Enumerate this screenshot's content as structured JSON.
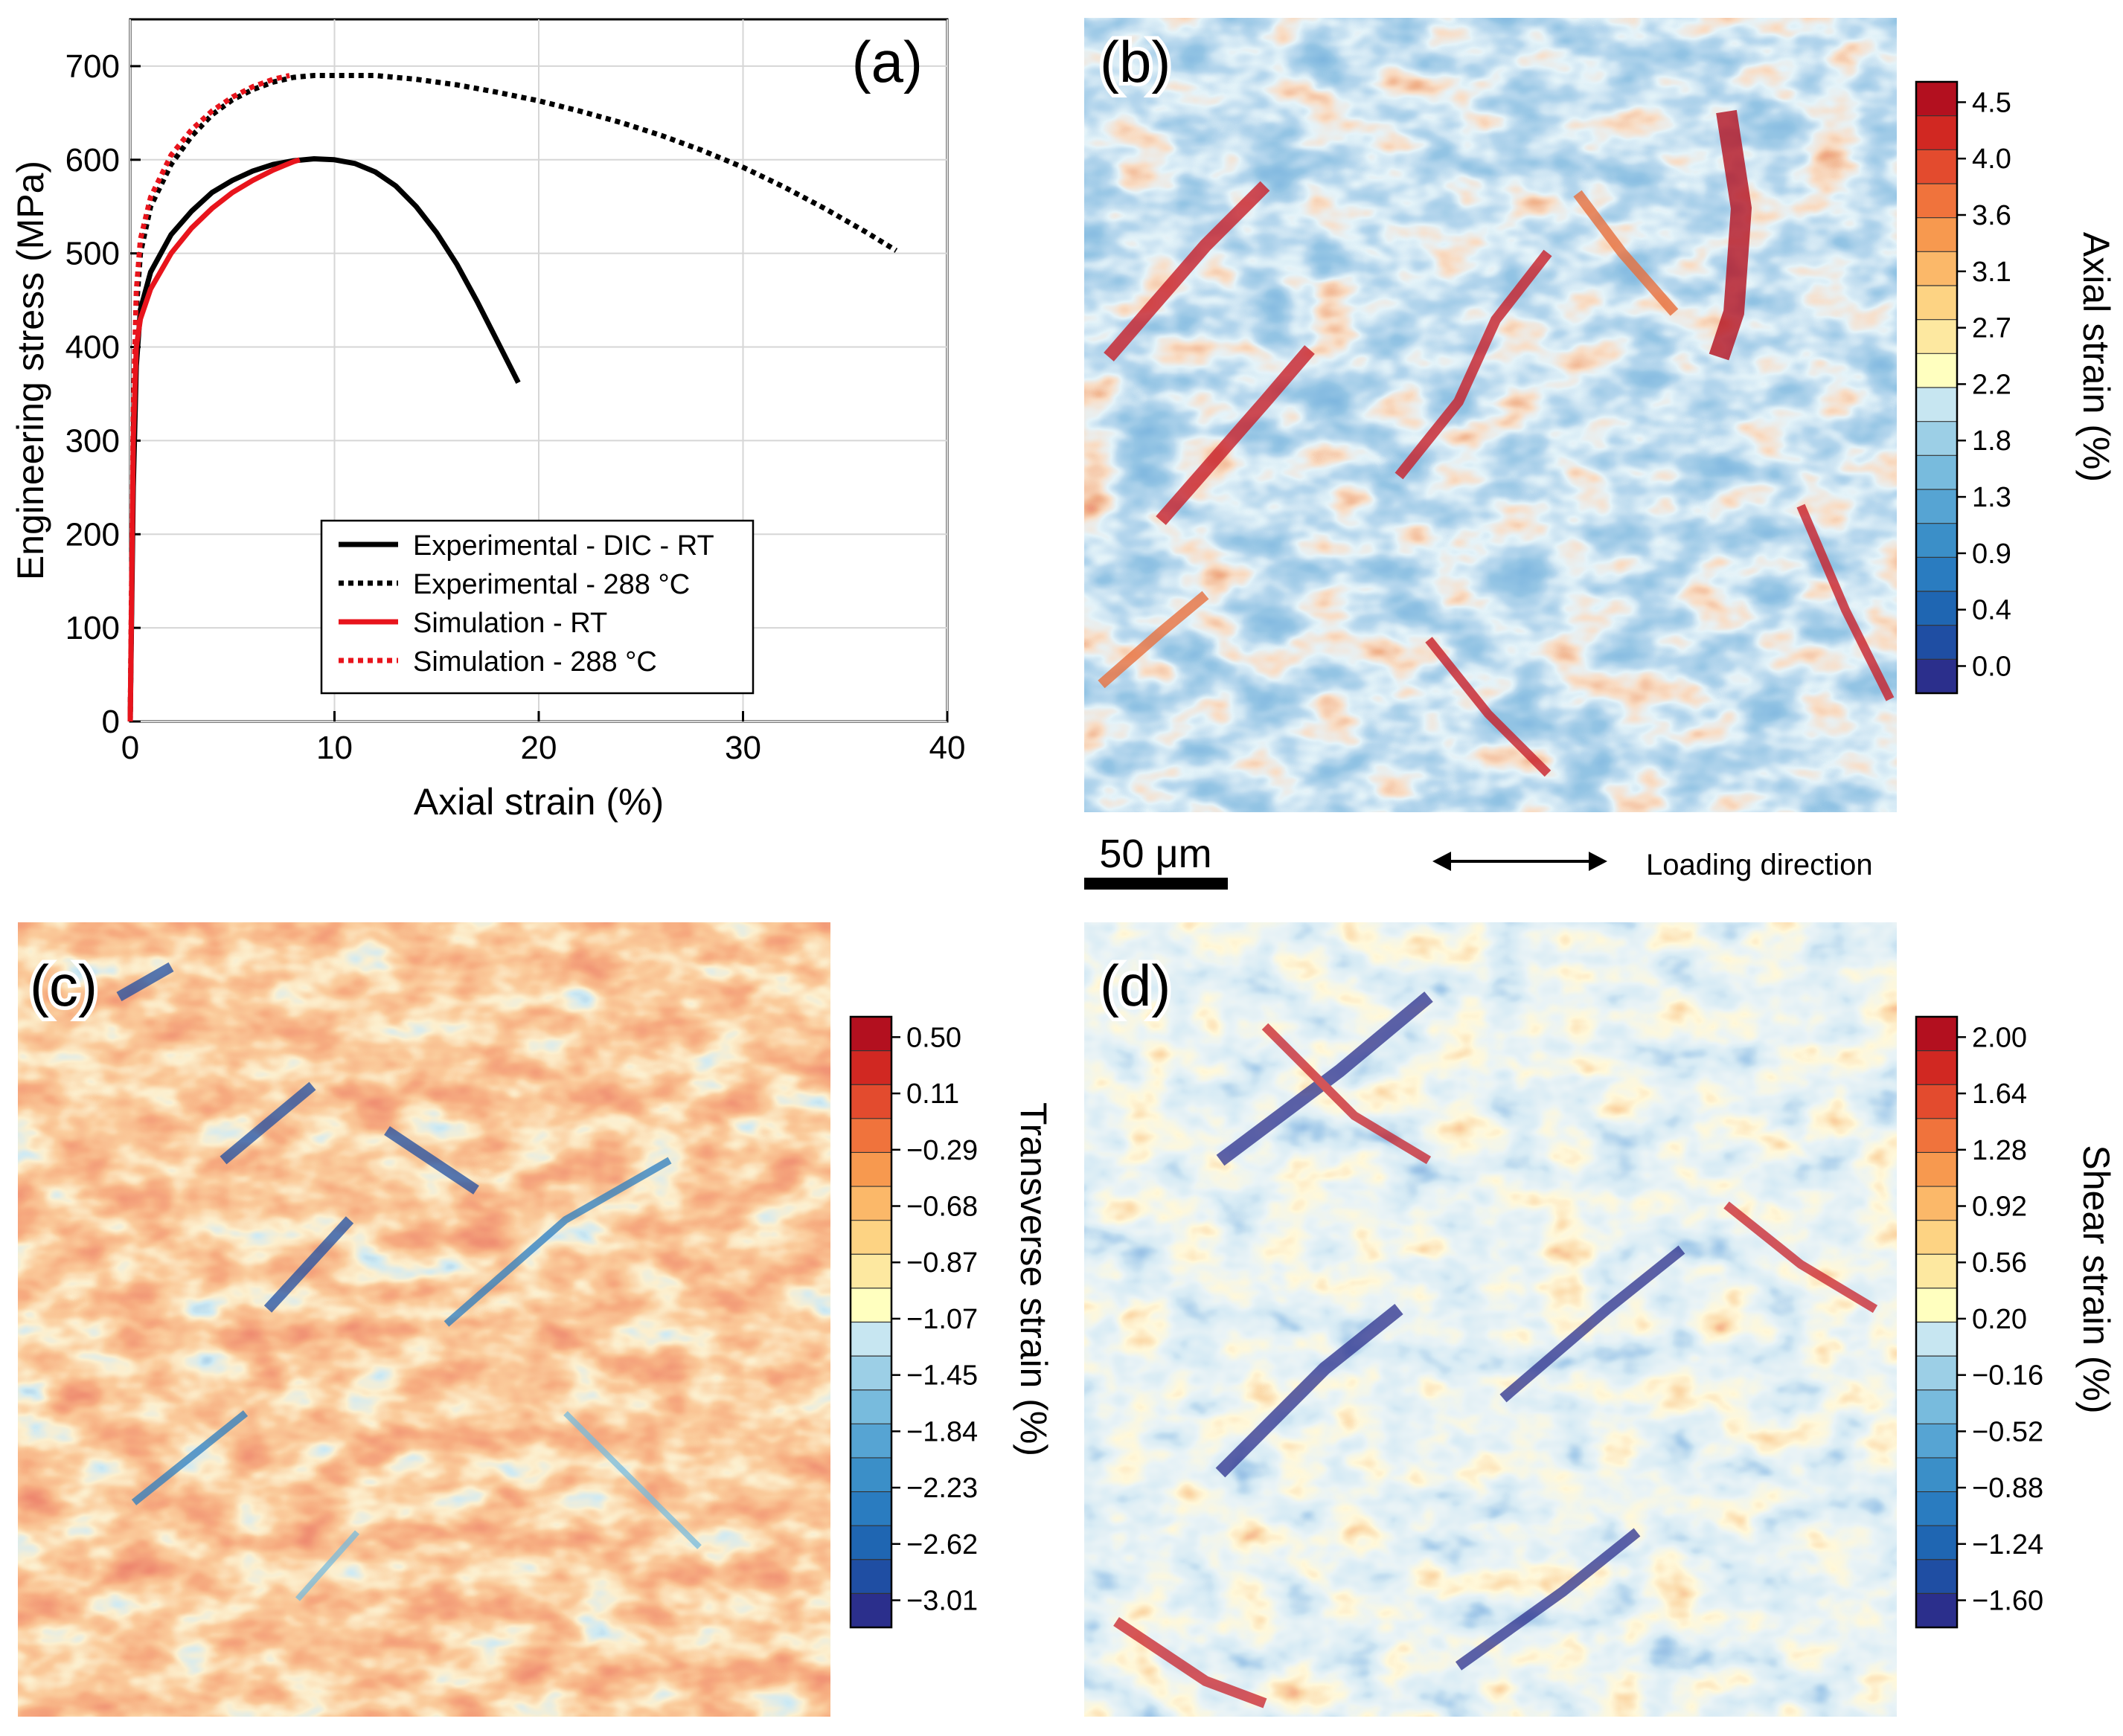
{
  "colors": {
    "rt_line": "#000000",
    "sim_line": "#e8141c",
    "scale": [
      "#2b2f8c",
      "#1f4ea3",
      "#1f66b2",
      "#2a7cc0",
      "#3b8fc8",
      "#56a4d3",
      "#78bbdd",
      "#9ccfe6",
      "#c7e6f1",
      "#ffffbf",
      "#fde8a0",
      "#fdd383",
      "#fbb869",
      "#f7994f",
      "#f0733c",
      "#e34b2e",
      "#d12822",
      "#b3101f"
    ]
  },
  "chart_data": [
    {
      "panel": "(a)",
      "type": "line",
      "xlabel": "Axial strain (%)",
      "ylabel": "Engineering stress (MPa)",
      "xlim": [
        0,
        40
      ],
      "ylim": [
        0,
        750
      ],
      "xticks": [
        "0",
        "10",
        "20",
        "30",
        "40"
      ],
      "yticks": [
        "0",
        "100",
        "200",
        "300",
        "400",
        "500",
        "600",
        "700"
      ],
      "grid": true,
      "legend_position": "lower-center",
      "series": [
        {
          "name": "Experimental - DIC - RT",
          "style": "solid",
          "color": "#000000",
          "x": [
            0,
            0.15,
            0.3,
            0.5,
            1,
            2,
            3,
            4,
            5,
            6,
            7,
            8,
            9,
            10,
            11,
            12,
            13,
            14,
            15,
            16,
            17,
            18,
            19
          ],
          "y": [
            0,
            250,
            380,
            440,
            480,
            520,
            545,
            565,
            578,
            588,
            595,
            599,
            601,
            600,
            596,
            587,
            572,
            550,
            522,
            488,
            448,
            405,
            362
          ]
        },
        {
          "name": "Experimental - 288 °C",
          "style": "dotted",
          "color": "#000000",
          "x": [
            0,
            0.15,
            0.3,
            0.5,
            1,
            2,
            3,
            4,
            5,
            6,
            7,
            8,
            9,
            10,
            12,
            14,
            16,
            18,
            20,
            22,
            24,
            26,
            28,
            30,
            32,
            34,
            36,
            37.5
          ],
          "y": [
            0,
            300,
            440,
            500,
            550,
            595,
            625,
            648,
            664,
            675,
            683,
            688,
            690,
            690,
            690,
            686,
            680,
            672,
            663,
            652,
            640,
            626,
            610,
            592,
            571,
            548,
            523,
            503
          ]
        },
        {
          "name": "Simulation - RT",
          "style": "solid",
          "color": "#e8141c",
          "x": [
            0,
            0.15,
            0.3,
            0.5,
            1,
            2,
            3,
            4,
            5,
            6,
            7,
            8,
            8.3
          ],
          "y": [
            0,
            300,
            400,
            430,
            462,
            500,
            527,
            548,
            565,
            578,
            589,
            598,
            600
          ]
        },
        {
          "name": "Simulation - 288 °C",
          "style": "dotted",
          "color": "#e8141c",
          "x": [
            0,
            0.15,
            0.3,
            0.5,
            1,
            2,
            3,
            4,
            5,
            6,
            7,
            7.8
          ],
          "y": [
            0,
            330,
            460,
            515,
            560,
            605,
            632,
            652,
            667,
            678,
            686,
            690
          ]
        }
      ]
    },
    {
      "panel": "(b)",
      "type": "heatmap",
      "quantity": "Axial strain (%)",
      "colorbar_ticks": [
        "4.5",
        "4.0",
        "3.6",
        "3.1",
        "2.7",
        "2.2",
        "1.8",
        "1.3",
        "0.9",
        "0.4",
        "0.0"
      ],
      "scale_bar": "50 μm",
      "loading_direction": "Loading direction"
    },
    {
      "panel": "(c)",
      "type": "heatmap",
      "quantity": "Transverse strain (%)",
      "colorbar_ticks": [
        "0.50",
        "0.11",
        "−0.29",
        "−0.68",
        "−0.87",
        "−1.07",
        "−1.45",
        "−1.84",
        "−2.23",
        "−2.62",
        "−3.01"
      ]
    },
    {
      "panel": "(d)",
      "type": "heatmap",
      "quantity": "Shear strain (%)",
      "colorbar_ticks": [
        "2.00",
        "1.64",
        "1.28",
        "0.92",
        "0.56",
        "0.20",
        "−0.16",
        "−0.52",
        "−0.88",
        "−1.24",
        "−1.60"
      ]
    }
  ]
}
